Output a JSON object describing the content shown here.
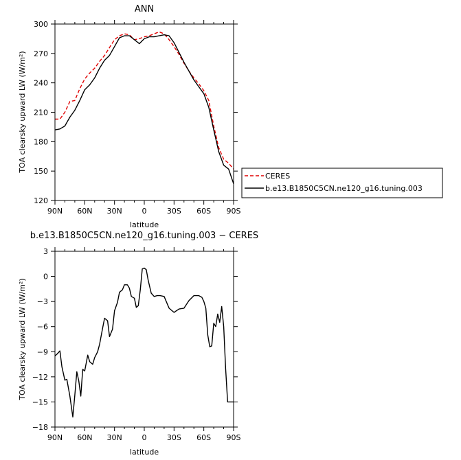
{
  "chart_data": [
    {
      "type": "line",
      "title": "ANN",
      "xlabel": "latitude",
      "ylabel": "TOA clearsky upward LW (W/m²)",
      "xlim": [
        -90,
        90
      ],
      "ylim": [
        120,
        300
      ],
      "x_ticks": [
        -90,
        -60,
        -30,
        0,
        30,
        60,
        90
      ],
      "x_tick_labels": [
        "90N",
        "60N",
        "30N",
        "0",
        "30S",
        "60S",
        "90S"
      ],
      "y_ticks": [
        120,
        150,
        180,
        210,
        240,
        270,
        300
      ],
      "y_tick_labels": [
        "120",
        "150",
        "180",
        "210",
        "240",
        "270",
        "300"
      ],
      "legend_position": "right",
      "series": [
        {
          "name": "CERES",
          "color": "#e00000",
          "dash": "dashed",
          "x": [
            -90,
            -85,
            -80,
            -75,
            -70,
            -65,
            -60,
            -55,
            -50,
            -45,
            -40,
            -35,
            -30,
            -25,
            -20,
            -15,
            -10,
            -5,
            0,
            5,
            10,
            15,
            20,
            25,
            30,
            35,
            40,
            45,
            50,
            55,
            60,
            65,
            70,
            75,
            80,
            85,
            90
          ],
          "values": [
            203,
            203,
            210,
            221,
            222,
            234,
            244,
            250,
            255,
            262,
            268,
            276,
            284,
            288,
            290,
            289,
            284,
            285,
            287,
            288,
            290,
            292,
            290,
            284,
            277,
            269,
            260,
            252,
            245,
            239,
            232,
            222,
            196,
            174,
            162,
            158,
            152
          ]
        },
        {
          "name": "b.e13.B1850C5CN.ne120_g16.tuning.003",
          "color": "#000000",
          "dash": "solid",
          "x": [
            -90,
            -85,
            -80,
            -75,
            -70,
            -65,
            -60,
            -55,
            -50,
            -45,
            -40,
            -35,
            -30,
            -25,
            -20,
            -15,
            -10,
            -5,
            0,
            5,
            10,
            15,
            20,
            25,
            30,
            35,
            40,
            45,
            50,
            55,
            60,
            65,
            70,
            75,
            80,
            85,
            90
          ],
          "values": [
            192,
            193,
            196,
            205,
            212,
            222,
            233,
            238,
            245,
            255,
            263,
            268,
            277,
            286,
            288,
            288,
            284,
            280,
            285,
            287,
            287,
            288,
            289,
            288,
            281,
            271,
            261,
            252,
            243,
            236,
            229,
            215,
            192,
            170,
            156,
            152,
            137
          ]
        }
      ]
    },
    {
      "type": "line",
      "title": "b.e13.B1850C5CN.ne120_g16.tuning.003 − CERES",
      "xlabel": "latitude",
      "ylabel": "TOA clearsky upward LW (W/m²)",
      "xlim": [
        -90,
        90
      ],
      "ylim": [
        -18,
        3
      ],
      "x_ticks": [
        -90,
        -60,
        -30,
        0,
        30,
        60,
        90
      ],
      "x_tick_labels": [
        "90N",
        "60N",
        "30N",
        "0",
        "30S",
        "60S",
        "90S"
      ],
      "y_ticks": [
        -18,
        -15,
        -12,
        -9,
        -6,
        -3,
        0,
        3
      ],
      "y_tick_labels": [
        "−18",
        "−15",
        "−12",
        "−9",
        "−6",
        "−3",
        "0",
        "3"
      ],
      "series": [
        {
          "color": "#000000",
          "dash": "solid",
          "x": [
            -90,
            -88,
            -85,
            -83,
            -80,
            -78,
            -75,
            -72,
            -70,
            -68,
            -66,
            -64,
            -62,
            -60,
            -57,
            -55,
            -52,
            -50,
            -47,
            -45,
            -42,
            -40,
            -37,
            -35,
            -32,
            -30,
            -27,
            -25,
            -22,
            -20,
            -17,
            -15,
            -13,
            -10,
            -8,
            -6,
            -4,
            -2,
            0,
            2,
            4,
            7,
            10,
            13,
            16,
            20,
            25,
            30,
            35,
            40,
            45,
            50,
            55,
            58,
            60,
            62,
            64,
            66,
            68,
            70,
            72,
            74,
            76,
            78,
            80,
            82,
            84,
            86,
            88,
            90
          ],
          "values": [
            -9.5,
            -9.3,
            -8.9,
            -10.8,
            -12.4,
            -12.3,
            -14.3,
            -16.8,
            -14.2,
            -11.4,
            -12.5,
            -14.3,
            -11.1,
            -11.3,
            -9.4,
            -10.2,
            -10.5,
            -9.7,
            -9.0,
            -8.1,
            -6.2,
            -5.0,
            -5.3,
            -7.2,
            -6.3,
            -4.1,
            -3.1,
            -1.9,
            -1.6,
            -1.0,
            -1.0,
            -1.4,
            -2.4,
            -2.6,
            -3.7,
            -3.5,
            -1.6,
            0.9,
            1.0,
            0.8,
            -0.5,
            -2.0,
            -2.4,
            -2.3,
            -2.3,
            -2.4,
            -3.8,
            -4.3,
            -3.9,
            -3.8,
            -2.9,
            -2.3,
            -2.3,
            -2.5,
            -3.0,
            -3.8,
            -7.0,
            -8.4,
            -8.3,
            -5.6,
            -6.0,
            -4.5,
            -5.5,
            -3.6,
            -6.0,
            -11.0,
            -15.0,
            -15.0,
            -15.0,
            -15.0
          ]
        }
      ]
    }
  ]
}
